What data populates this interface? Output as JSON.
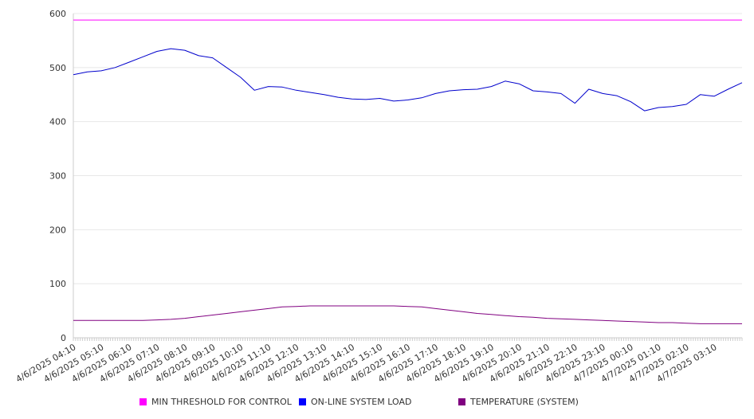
{
  "chart_data": {
    "type": "line",
    "title": "",
    "xlabel": "",
    "ylabel": "",
    "ylim": [
      0,
      600
    ],
    "y_ticks": [
      "0",
      "100",
      "200",
      "300",
      "400",
      "500",
      "600"
    ],
    "x_tick_labels": [
      "4/6/2025 04:10",
      "4/6/2025 05:10",
      "4/6/2025 06:10",
      "4/6/2025 07:10",
      "4/6/2025 08:10",
      "4/6/2025 09:10",
      "4/6/2025 10:10",
      "4/6/2025 11:10",
      "4/6/2025 12:10",
      "4/6/2025 13:10",
      "4/6/2025 14:10",
      "4/6/2025 15:10",
      "4/6/2025 16:10",
      "4/6/2025 17:10",
      "4/6/2025 18:10",
      "4/6/2025 19:10",
      "4/6/2025 20:10",
      "4/6/2025 21:10",
      "4/6/2025 22:10",
      "4/6/2025 23:10",
      "4/7/2025 00:10",
      "4/7/2025 01:10",
      "4/7/2025 02:10",
      "4/7/2025 03:10"
    ],
    "x_hours": [
      0,
      0.5,
      1,
      1.5,
      2,
      2.5,
      3,
      3.5,
      4,
      4.5,
      5,
      5.5,
      6,
      6.5,
      7,
      7.5,
      8,
      8.5,
      9,
      9.5,
      10,
      10.5,
      11,
      11.5,
      12,
      12.5,
      13,
      13.5,
      14,
      14.5,
      15,
      15.5,
      16,
      16.5,
      17,
      17.5,
      18,
      18.5,
      19,
      19.5,
      20,
      20.5,
      21,
      21.5,
      22,
      22.5,
      23,
      23.5,
      24
    ],
    "grid": true,
    "legend_position": "bottom",
    "series": [
      {
        "name": "MIN THRESHOLD FOR CONTROL",
        "color": "#ff00ff",
        "values": [
          588,
          588,
          588,
          588,
          588,
          588,
          588,
          588,
          588,
          588,
          588,
          588,
          588,
          588,
          588,
          588,
          588,
          588,
          588,
          588,
          588,
          588,
          588,
          588,
          588,
          588,
          588,
          588,
          588,
          588,
          588,
          588,
          588,
          588,
          588,
          588,
          588,
          588,
          588,
          588,
          588,
          588,
          588,
          588,
          588,
          588,
          588,
          588,
          588
        ]
      },
      {
        "name": "ON-LINE SYSTEM LOAD",
        "color": "#0000cc",
        "values": [
          487,
          492,
          494,
          500,
          510,
          520,
          530,
          535,
          532,
          522,
          518,
          500,
          482,
          458,
          465,
          464,
          458,
          454,
          450,
          445,
          442,
          441,
          443,
          438,
          440,
          444,
          452,
          457,
          459,
          460,
          465,
          475,
          470,
          457,
          455,
          452,
          434,
          460,
          452,
          448,
          437,
          420,
          426,
          428,
          432,
          450,
          447,
          460,
          472
        ]
      },
      {
        "name": "TEMPERATURE (SYSTEM)",
        "color": "#800080",
        "values": [
          32,
          32,
          32,
          32,
          32,
          32,
          33,
          34,
          36,
          39,
          42,
          45,
          48,
          51,
          54,
          57,
          58,
          59,
          59,
          59,
          59,
          59,
          59,
          59,
          58,
          57,
          54,
          51,
          48,
          45,
          43,
          41,
          39,
          38,
          36,
          35,
          34,
          33,
          32,
          31,
          30,
          29,
          28,
          28,
          27,
          26,
          26,
          26,
          26
        ]
      }
    ]
  }
}
